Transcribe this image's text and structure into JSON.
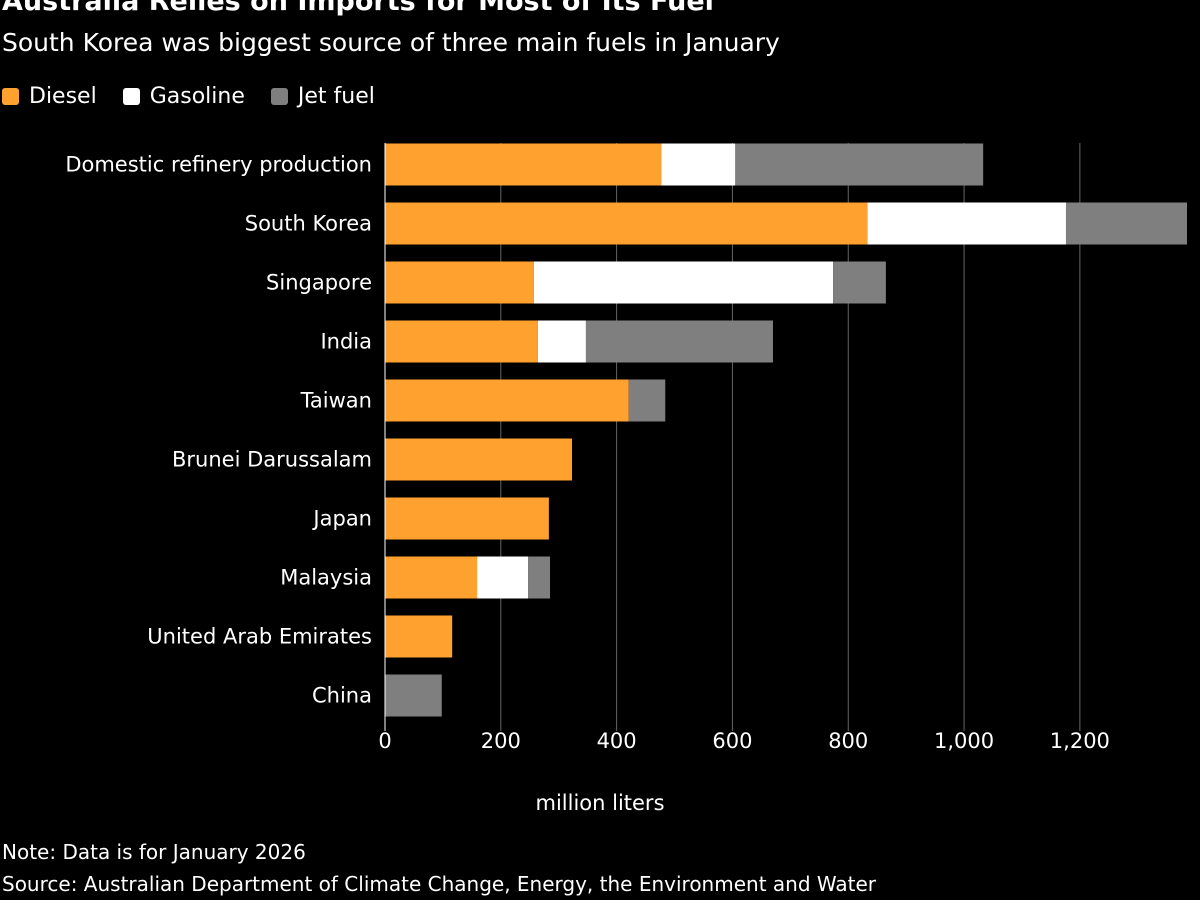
{
  "title": "Australia Relies on Imports for Most of Its Fuel",
  "subtitle": "South Korea was biggest source of three main fuels in January",
  "note": "Note: Data is for January 2026",
  "source": "Source: Australian Department of Climate Change, Energy, the Environment and Water",
  "chart_data": {
    "type": "bar",
    "orientation": "horizontal",
    "stacked": true,
    "xlabel": "million liters",
    "xlim": [
      0,
      1385
    ],
    "xticks": [
      0,
      200,
      400,
      600,
      800,
      1000,
      1200
    ],
    "xtick_labels": [
      "0",
      "200",
      "400",
      "600",
      "800",
      "1,000",
      "1,200"
    ],
    "grid": true,
    "legend_placement": "top-left",
    "categories": [
      "Domestic refinery production",
      "South Korea",
      "Singapore",
      "India",
      "Taiwan",
      "Brunei Darussalam",
      "Japan",
      "Malaysia",
      "United Arab Emirates",
      "China"
    ],
    "series": [
      {
        "name": "Diesel",
        "color": "#ffa12e",
        "values": [
          477,
          833,
          257,
          264,
          421,
          323,
          283,
          159,
          116,
          0
        ]
      },
      {
        "name": "Gasoline",
        "color": "#ffffff",
        "values": [
          128,
          343,
          517,
          83,
          0,
          0,
          0,
          88,
          0,
          0
        ]
      },
      {
        "name": "Jet fuel",
        "color": "#7f7f7f",
        "values": [
          428,
          209,
          91,
          323,
          63,
          0,
          0,
          38,
          0,
          98
        ]
      }
    ]
  }
}
